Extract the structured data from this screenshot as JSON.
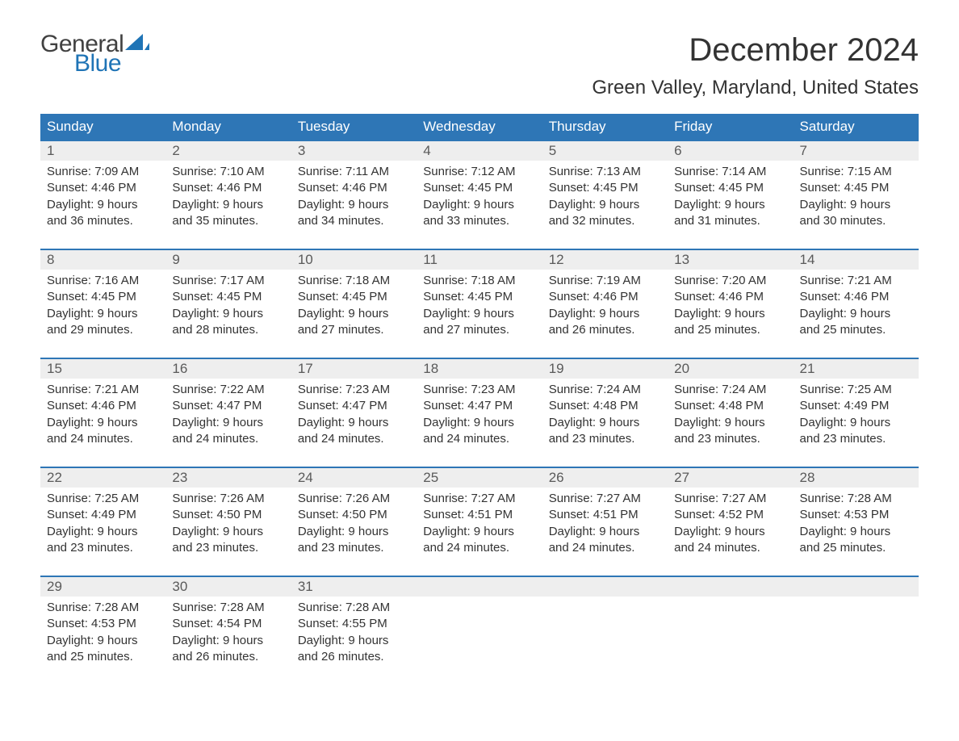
{
  "logo": {
    "general": "General",
    "blue": "Blue"
  },
  "title": "December 2024",
  "location": "Green Valley, Maryland, United States",
  "colors": {
    "header_bg": "#2e76b6",
    "header_text": "#ffffff",
    "daynum_bg": "#eeeeee",
    "week_border": "#2e76b6",
    "logo_general": "#414141",
    "logo_blue": "#1f74b6",
    "body_text": "#333333",
    "background": "#ffffff"
  },
  "typography": {
    "title_fontsize": 40,
    "location_fontsize": 24,
    "dayheader_fontsize": 17,
    "daynum_fontsize": 17,
    "body_fontsize": 15,
    "logo_fontsize": 30
  },
  "day_headers": [
    "Sunday",
    "Monday",
    "Tuesday",
    "Wednesday",
    "Thursday",
    "Friday",
    "Saturday"
  ],
  "weeks": [
    [
      {
        "n": "1",
        "sunrise": "Sunrise: 7:09 AM",
        "sunset": "Sunset: 4:46 PM",
        "dl1": "Daylight: 9 hours",
        "dl2": "and 36 minutes."
      },
      {
        "n": "2",
        "sunrise": "Sunrise: 7:10 AM",
        "sunset": "Sunset: 4:46 PM",
        "dl1": "Daylight: 9 hours",
        "dl2": "and 35 minutes."
      },
      {
        "n": "3",
        "sunrise": "Sunrise: 7:11 AM",
        "sunset": "Sunset: 4:46 PM",
        "dl1": "Daylight: 9 hours",
        "dl2": "and 34 minutes."
      },
      {
        "n": "4",
        "sunrise": "Sunrise: 7:12 AM",
        "sunset": "Sunset: 4:45 PM",
        "dl1": "Daylight: 9 hours",
        "dl2": "and 33 minutes."
      },
      {
        "n": "5",
        "sunrise": "Sunrise: 7:13 AM",
        "sunset": "Sunset: 4:45 PM",
        "dl1": "Daylight: 9 hours",
        "dl2": "and 32 minutes."
      },
      {
        "n": "6",
        "sunrise": "Sunrise: 7:14 AM",
        "sunset": "Sunset: 4:45 PM",
        "dl1": "Daylight: 9 hours",
        "dl2": "and 31 minutes."
      },
      {
        "n": "7",
        "sunrise": "Sunrise: 7:15 AM",
        "sunset": "Sunset: 4:45 PM",
        "dl1": "Daylight: 9 hours",
        "dl2": "and 30 minutes."
      }
    ],
    [
      {
        "n": "8",
        "sunrise": "Sunrise: 7:16 AM",
        "sunset": "Sunset: 4:45 PM",
        "dl1": "Daylight: 9 hours",
        "dl2": "and 29 minutes."
      },
      {
        "n": "9",
        "sunrise": "Sunrise: 7:17 AM",
        "sunset": "Sunset: 4:45 PM",
        "dl1": "Daylight: 9 hours",
        "dl2": "and 28 minutes."
      },
      {
        "n": "10",
        "sunrise": "Sunrise: 7:18 AM",
        "sunset": "Sunset: 4:45 PM",
        "dl1": "Daylight: 9 hours",
        "dl2": "and 27 minutes."
      },
      {
        "n": "11",
        "sunrise": "Sunrise: 7:18 AM",
        "sunset": "Sunset: 4:45 PM",
        "dl1": "Daylight: 9 hours",
        "dl2": "and 27 minutes."
      },
      {
        "n": "12",
        "sunrise": "Sunrise: 7:19 AM",
        "sunset": "Sunset: 4:46 PM",
        "dl1": "Daylight: 9 hours",
        "dl2": "and 26 minutes."
      },
      {
        "n": "13",
        "sunrise": "Sunrise: 7:20 AM",
        "sunset": "Sunset: 4:46 PM",
        "dl1": "Daylight: 9 hours",
        "dl2": "and 25 minutes."
      },
      {
        "n": "14",
        "sunrise": "Sunrise: 7:21 AM",
        "sunset": "Sunset: 4:46 PM",
        "dl1": "Daylight: 9 hours",
        "dl2": "and 25 minutes."
      }
    ],
    [
      {
        "n": "15",
        "sunrise": "Sunrise: 7:21 AM",
        "sunset": "Sunset: 4:46 PM",
        "dl1": "Daylight: 9 hours",
        "dl2": "and 24 minutes."
      },
      {
        "n": "16",
        "sunrise": "Sunrise: 7:22 AM",
        "sunset": "Sunset: 4:47 PM",
        "dl1": "Daylight: 9 hours",
        "dl2": "and 24 minutes."
      },
      {
        "n": "17",
        "sunrise": "Sunrise: 7:23 AM",
        "sunset": "Sunset: 4:47 PM",
        "dl1": "Daylight: 9 hours",
        "dl2": "and 24 minutes."
      },
      {
        "n": "18",
        "sunrise": "Sunrise: 7:23 AM",
        "sunset": "Sunset: 4:47 PM",
        "dl1": "Daylight: 9 hours",
        "dl2": "and 24 minutes."
      },
      {
        "n": "19",
        "sunrise": "Sunrise: 7:24 AM",
        "sunset": "Sunset: 4:48 PM",
        "dl1": "Daylight: 9 hours",
        "dl2": "and 23 minutes."
      },
      {
        "n": "20",
        "sunrise": "Sunrise: 7:24 AM",
        "sunset": "Sunset: 4:48 PM",
        "dl1": "Daylight: 9 hours",
        "dl2": "and 23 minutes."
      },
      {
        "n": "21",
        "sunrise": "Sunrise: 7:25 AM",
        "sunset": "Sunset: 4:49 PM",
        "dl1": "Daylight: 9 hours",
        "dl2": "and 23 minutes."
      }
    ],
    [
      {
        "n": "22",
        "sunrise": "Sunrise: 7:25 AM",
        "sunset": "Sunset: 4:49 PM",
        "dl1": "Daylight: 9 hours",
        "dl2": "and 23 minutes."
      },
      {
        "n": "23",
        "sunrise": "Sunrise: 7:26 AM",
        "sunset": "Sunset: 4:50 PM",
        "dl1": "Daylight: 9 hours",
        "dl2": "and 23 minutes."
      },
      {
        "n": "24",
        "sunrise": "Sunrise: 7:26 AM",
        "sunset": "Sunset: 4:50 PM",
        "dl1": "Daylight: 9 hours",
        "dl2": "and 23 minutes."
      },
      {
        "n": "25",
        "sunrise": "Sunrise: 7:27 AM",
        "sunset": "Sunset: 4:51 PM",
        "dl1": "Daylight: 9 hours",
        "dl2": "and 24 minutes."
      },
      {
        "n": "26",
        "sunrise": "Sunrise: 7:27 AM",
        "sunset": "Sunset: 4:51 PM",
        "dl1": "Daylight: 9 hours",
        "dl2": "and 24 minutes."
      },
      {
        "n": "27",
        "sunrise": "Sunrise: 7:27 AM",
        "sunset": "Sunset: 4:52 PM",
        "dl1": "Daylight: 9 hours",
        "dl2": "and 24 minutes."
      },
      {
        "n": "28",
        "sunrise": "Sunrise: 7:28 AM",
        "sunset": "Sunset: 4:53 PM",
        "dl1": "Daylight: 9 hours",
        "dl2": "and 25 minutes."
      }
    ],
    [
      {
        "n": "29",
        "sunrise": "Sunrise: 7:28 AM",
        "sunset": "Sunset: 4:53 PM",
        "dl1": "Daylight: 9 hours",
        "dl2": "and 25 minutes."
      },
      {
        "n": "30",
        "sunrise": "Sunrise: 7:28 AM",
        "sunset": "Sunset: 4:54 PM",
        "dl1": "Daylight: 9 hours",
        "dl2": "and 26 minutes."
      },
      {
        "n": "31",
        "sunrise": "Sunrise: 7:28 AM",
        "sunset": "Sunset: 4:55 PM",
        "dl1": "Daylight: 9 hours",
        "dl2": "and 26 minutes."
      },
      {
        "empty": true
      },
      {
        "empty": true
      },
      {
        "empty": true
      },
      {
        "empty": true
      }
    ]
  ]
}
